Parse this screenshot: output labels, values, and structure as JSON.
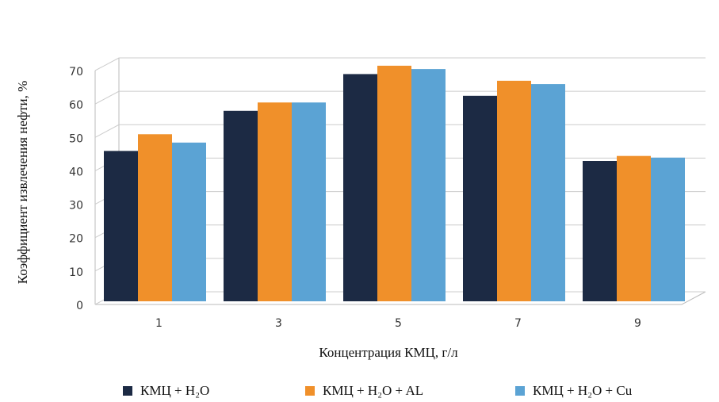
{
  "chart_data": {
    "type": "bar",
    "x_label": "Концентрация КМЦ, г/л",
    "y_label": "Коэффициент извлечения нефти, %",
    "categories": [
      "1",
      "3",
      "5",
      "7",
      "9"
    ],
    "series": [
      {
        "name": "КМЦ + H₂O",
        "color": "#1c2a44",
        "values": [
          45,
          57,
          68,
          61.5,
          42
        ]
      },
      {
        "name": "КМЦ + H₂O + AL",
        "color": "#f0902a",
        "values": [
          50,
          59.5,
          70.5,
          66,
          43.5
        ]
      },
      {
        "name": "КМЦ + H₂O + Cu",
        "color": "#5ba3d4",
        "values": [
          47.5,
          59.5,
          69.5,
          65,
          43
        ]
      }
    ],
    "ylim": [
      0,
      70
    ],
    "yticks": [
      0,
      10,
      20,
      30,
      40,
      50,
      60,
      70
    ],
    "grid": true,
    "legend": "bottom"
  }
}
